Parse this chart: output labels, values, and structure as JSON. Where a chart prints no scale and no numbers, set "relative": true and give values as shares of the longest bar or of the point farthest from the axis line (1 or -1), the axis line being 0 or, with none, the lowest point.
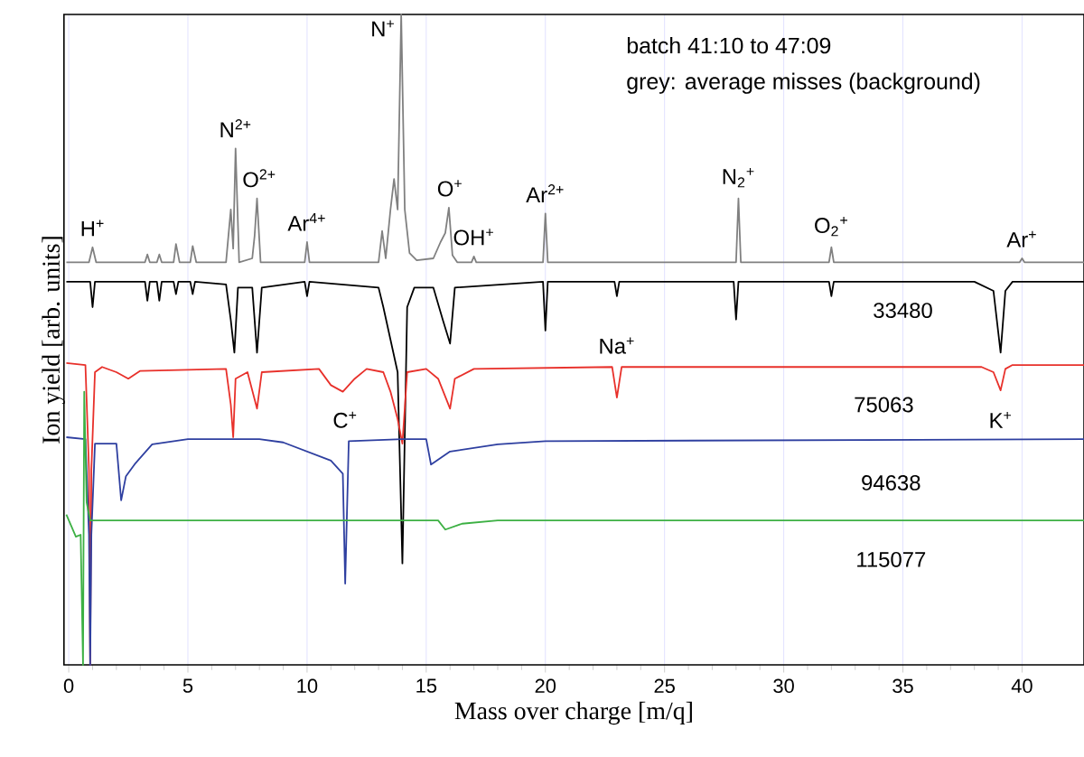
{
  "chart_data": {
    "type": "line",
    "relative": true,
    "xlabel": "Mass over charge [m/q]",
    "ylabel": "Ion yield [arb. units]",
    "xlim": [
      -0.2,
      42.6
    ],
    "xticks": [
      0,
      5,
      10,
      15,
      20,
      25,
      30,
      35,
      40
    ],
    "grid": "x",
    "series": [
      {
        "color": "#808080",
        "x": [
          -0.1,
          0.85,
          1,
          1.15,
          3.2,
          3.3,
          3.4,
          3.7,
          3.8,
          3.9,
          4.4,
          4.5,
          4.65,
          5.1,
          5.2,
          5.35,
          6.6,
          6.8,
          6.9,
          7.0,
          7.15,
          7.7,
          7.8,
          7.9,
          8.05,
          9.9,
          10,
          10.1,
          13,
          13.15,
          13.3,
          13.5,
          13.65,
          13.8,
          13.95,
          14.1,
          14.3,
          14.6,
          15.3,
          15.6,
          15.8,
          15.95,
          16.1,
          16.3,
          16.9,
          17,
          17.1,
          19.9,
          20,
          20.1,
          28,
          28.1,
          28.2,
          31.9,
          32,
          32.1,
          39.9,
          40,
          40.1,
          42.6
        ],
        "values": [
          0.619,
          0.619,
          0.642,
          0.619,
          0.619,
          0.631,
          0.619,
          0.619,
          0.631,
          0.619,
          0.619,
          0.647,
          0.619,
          0.619,
          0.644,
          0.619,
          0.619,
          0.7,
          0.64,
          0.794,
          0.619,
          0.625,
          0.66,
          0.717,
          0.619,
          0.619,
          0.65,
          0.619,
          0.619,
          0.667,
          0.625,
          0.7,
          0.747,
          0.7,
          1.0,
          0.7,
          0.633,
          0.622,
          0.625,
          0.65,
          0.664,
          0.703,
          0.63,
          0.619,
          0.619,
          0.628,
          0.619,
          0.619,
          0.694,
          0.619,
          0.619,
          0.717,
          0.619,
          0.619,
          0.642,
          0.619,
          0.619,
          0.625,
          0.619,
          0.619
        ]
      },
      {
        "name": "33480",
        "color": "#000000",
        "x": [
          -0.1,
          0.9,
          1,
          1.1,
          3.2,
          3.3,
          3.4,
          3.7,
          3.8,
          3.9,
          4.4,
          4.5,
          4.6,
          5.1,
          5.2,
          5.3,
          6.6,
          6.8,
          6.95,
          7.1,
          7.7,
          7.9,
          8.1,
          9.9,
          10,
          10.1,
          13,
          13.2,
          13.5,
          13.8,
          14,
          14.2,
          14.5,
          15.3,
          15.7,
          16,
          16.2,
          19.9,
          20,
          20.1,
          22.9,
          23,
          23.1,
          27.9,
          28,
          28.1,
          31.9,
          32,
          32.1,
          38,
          38.8,
          39.1,
          39.3,
          39.6,
          42.6
        ],
        "values": [
          0.589,
          0.589,
          0.55,
          0.589,
          0.589,
          0.56,
          0.589,
          0.589,
          0.56,
          0.589,
          0.589,
          0.57,
          0.589,
          0.589,
          0.57,
          0.589,
          0.585,
          0.53,
          0.48,
          0.58,
          0.58,
          0.48,
          0.58,
          0.589,
          0.567,
          0.589,
          0.58,
          0.55,
          0.5,
          0.45,
          0.156,
          0.55,
          0.58,
          0.58,
          0.53,
          0.494,
          0.58,
          0.589,
          0.514,
          0.589,
          0.589,
          0.567,
          0.589,
          0.589,
          0.531,
          0.589,
          0.589,
          0.567,
          0.589,
          0.589,
          0.575,
          0.48,
          0.575,
          0.589,
          0.589
        ]
      },
      {
        "name": "75063",
        "color": "#e8302a",
        "x": [
          -0.1,
          0.7,
          0.85,
          0.9,
          0.95,
          1.1,
          1.4,
          2,
          2.5,
          3,
          6.6,
          6.8,
          6.9,
          7.0,
          7.5,
          7.9,
          8.1,
          10.5,
          11,
          11.5,
          12,
          12.5,
          13.2,
          13.5,
          13.8,
          14,
          14.2,
          15,
          15.5,
          16,
          16.2,
          17,
          22.8,
          23,
          23.2,
          38.3,
          38.8,
          39.1,
          39.3,
          39.6,
          42.6
        ],
        "values": [
          0.464,
          0.461,
          0.3,
          0,
          0.3,
          0.45,
          0.458,
          0.45,
          0.44,
          0.452,
          0.455,
          0.4,
          0.35,
          0.44,
          0.45,
          0.394,
          0.45,
          0.455,
          0.43,
          0.42,
          0.44,
          0.455,
          0.45,
          0.42,
          0.378,
          0.34,
          0.45,
          0.455,
          0.44,
          0.394,
          0.44,
          0.455,
          0.458,
          0.411,
          0.458,
          0.458,
          0.45,
          0.422,
          0.455,
          0.461,
          0.461
        ]
      },
      {
        "name": "94638",
        "color": "#2e3fa0",
        "x": [
          -0.1,
          0.7,
          0.85,
          0.9,
          0.95,
          1.1,
          2,
          2.2,
          2.4,
          2.8,
          3.5,
          5,
          8,
          9,
          10,
          11,
          11.5,
          11.6,
          11.75,
          14,
          15,
          15.2,
          16,
          18,
          20,
          42.6
        ],
        "values": [
          0.35,
          0.347,
          0.2,
          0,
          0.2,
          0.34,
          0.34,
          0.253,
          0.29,
          0.31,
          0.339,
          0.347,
          0.347,
          0.342,
          0.328,
          0.314,
          0.294,
          0.125,
          0.344,
          0.347,
          0.347,
          0.308,
          0.328,
          0.339,
          0.344,
          0.347
        ]
      },
      {
        "name": "115077",
        "color": "#3cb043",
        "x": [
          -0.1,
          0.3,
          0.5,
          0.6,
          0.65,
          0.75,
          0.9,
          15.5,
          15.8,
          16.5,
          18,
          42.6
        ],
        "values": [
          0.231,
          0.197,
          0.2,
          0,
          0.42,
          0.25,
          0.222,
          0.222,
          0.208,
          0.217,
          0.222,
          0.222
        ]
      }
    ],
    "annotations": [
      "batch 41:10 to 47:09",
      "grey: average misses (background)",
      {
        "text": "H$^{+}$",
        "x": 1,
        "y": 0.642
      },
      {
        "text": "N$^{2+}$",
        "x": 7,
        "y": 0.794
      },
      {
        "text": "O$^{2+}$",
        "x": 8,
        "y": 0.717
      },
      {
        "text": "Ar$^{4+}$",
        "x": 10,
        "y": 0.65
      },
      {
        "text": "N$^{+}$",
        "x": 13.95,
        "y": 1.0
      },
      {
        "text": "O$^{+}$",
        "x": 16,
        "y": 0.703
      },
      {
        "text": "OH$^{+}$",
        "x": 17,
        "y": 0.628
      },
      {
        "text": "Ar$^{2+}$",
        "x": 20,
        "y": 0.694
      },
      {
        "text": "N$_{2}$$^{+}$",
        "x": 28.1,
        "y": 0.717
      },
      {
        "text": "O$_{2}$$^{+}$",
        "x": 32,
        "y": 0.642
      },
      {
        "text": "Ar$^{+}$",
        "x": 40,
        "y": 0.625
      },
      {
        "text": "Na$^{+}$",
        "x": 23,
        "y": 0.461
      },
      {
        "text": "C$^{+}$",
        "x": 11.6,
        "y": 0.347
      },
      {
        "text": "K$^{+}$",
        "x": 39.1,
        "y": 0.347
      }
    ]
  }
}
